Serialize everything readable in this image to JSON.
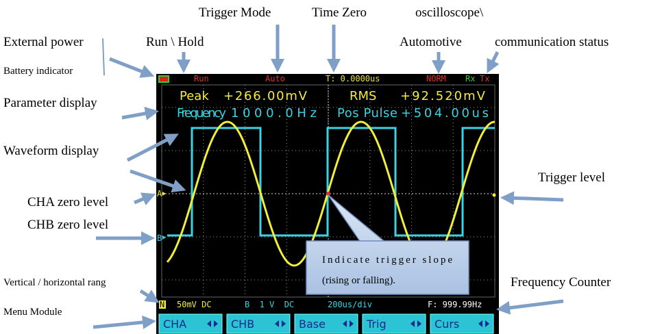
{
  "annotations": {
    "trigger_mode": "Trigger Mode",
    "time_zero": "Time Zero",
    "oscilloscope": "oscilloscope\\",
    "external_power": "External power",
    "run_hold": "Run \\ Hold",
    "automotive": "Automotive",
    "communication_status": "communication status",
    "battery_indicator": "Battery indicator",
    "parameter_display": "Parameter display",
    "waveform_display": "Waveform display",
    "trigger_level": "Trigger level",
    "cha_zero_level": "CHA zero level",
    "chb_zero_level": "CHB zero level",
    "range": "Vertical / horizontal rang",
    "frequency_counter": "Frequency Counter",
    "menu_module": "Menu Module",
    "callout": [
      "Indicate trigger slope",
      "(rising or falling)."
    ]
  },
  "screen": {
    "status": {
      "run": "Run",
      "mode": "Auto",
      "time": "T: 0.0000us",
      "coupling": "NORM",
      "rx": "Rx",
      "tx": "Tx"
    },
    "parameters": [
      {
        "label": "Peak",
        "value": "+266.00mV"
      },
      {
        "label": "RMS",
        "value": "+92.520mV"
      },
      {
        "label": "Frequency",
        "value": "1000.0Hz"
      },
      {
        "label": "Pos Pulse",
        "value": "+504.00us"
      }
    ],
    "markers": {
      "a": "A",
      "b": "B"
    },
    "info": {
      "mode": "N",
      "cha": "50mV DC",
      "chb": "B  1 V  DC",
      "timebase": "200us/div",
      "frequency": "F: 999.99Hz"
    },
    "menu": [
      "CHA",
      "CHB",
      "Base",
      "Trig",
      "Curs"
    ]
  }
}
